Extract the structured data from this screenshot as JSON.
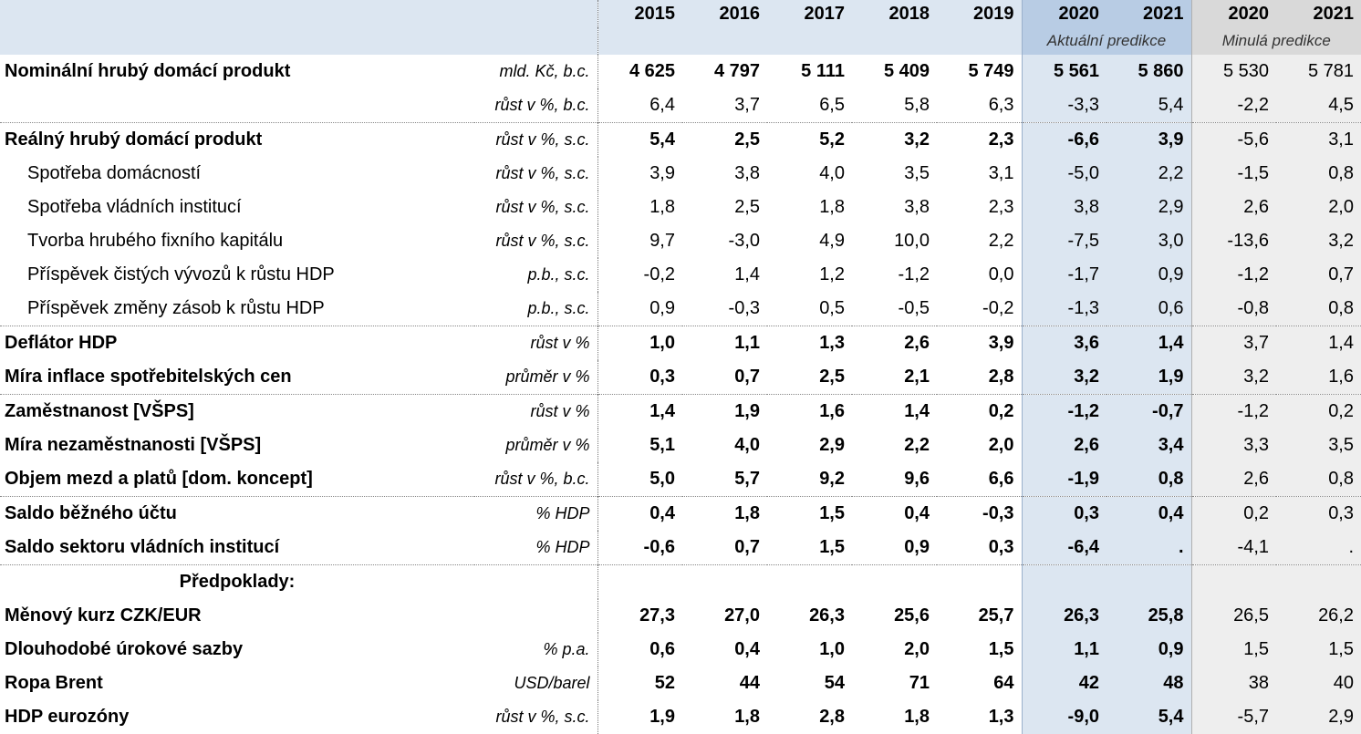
{
  "header": {
    "years_hist": [
      "2015",
      "2016",
      "2017",
      "2018",
      "2019"
    ],
    "years_current": [
      "2020",
      "2021"
    ],
    "years_previous": [
      "2020",
      "2021"
    ],
    "label_current": "Aktuální predikce",
    "label_previous": "Minulá predikce"
  },
  "rows": [
    {
      "name": "Nominální hrubý domácí produkt",
      "unit": "mld. Kč, b.c.",
      "values": [
        "4 625",
        "4 797",
        "5 111",
        "5 409",
        "5 749",
        "5 561",
        "5 860",
        "5 530",
        "5 781"
      ]
    },
    {
      "name": "",
      "unit": "růst v %, b.c.",
      "values": [
        "6,4",
        "3,7",
        "6,5",
        "5,8",
        "6,3",
        "-3,3",
        "5,4",
        "-2,2",
        "4,5"
      ]
    },
    {
      "name": "Reálný hrubý domácí produkt",
      "unit": "růst v %, s.c.",
      "values": [
        "5,4",
        "2,5",
        "5,2",
        "3,2",
        "2,3",
        "-6,6",
        "3,9",
        "-5,6",
        "3,1"
      ]
    },
    {
      "name": "Spotřeba domácností",
      "unit": "růst v %, s.c.",
      "values": [
        "3,9",
        "3,8",
        "4,0",
        "3,5",
        "3,1",
        "-5,0",
        "2,2",
        "-1,5",
        "0,8"
      ]
    },
    {
      "name": "Spotřeba vládních institucí",
      "unit": "růst v %, s.c.",
      "values": [
        "1,8",
        "2,5",
        "1,8",
        "3,8",
        "2,3",
        "3,8",
        "2,9",
        "2,6",
        "2,0"
      ]
    },
    {
      "name": "Tvorba hrubého fixního kapitálu",
      "unit": "růst v %, s.c.",
      "values": [
        "9,7",
        "-3,0",
        "4,9",
        "10,0",
        "2,2",
        "-7,5",
        "3,0",
        "-13,6",
        "3,2"
      ]
    },
    {
      "name": "Příspěvek čistých vývozů k růstu HDP",
      "unit": "p.b., s.c.",
      "values": [
        "-0,2",
        "1,4",
        "1,2",
        "-1,2",
        "0,0",
        "-1,7",
        "0,9",
        "-1,2",
        "0,7"
      ]
    },
    {
      "name": "Příspěvek změny zásob k růstu HDP",
      "unit": "p.b., s.c.",
      "values": [
        "0,9",
        "-0,3",
        "0,5",
        "-0,5",
        "-0,2",
        "-1,3",
        "0,6",
        "-0,8",
        "0,8"
      ]
    },
    {
      "name": "Deflátor HDP",
      "unit": "růst v %",
      "values": [
        "1,0",
        "1,1",
        "1,3",
        "2,6",
        "3,9",
        "3,6",
        "1,4",
        "3,7",
        "1,4"
      ]
    },
    {
      "name": "Míra inflace spotřebitelských cen",
      "unit": "průměr v %",
      "values": [
        "0,3",
        "0,7",
        "2,5",
        "2,1",
        "2,8",
        "3,2",
        "1,9",
        "3,2",
        "1,6"
      ]
    },
    {
      "name": "Zaměstnanost [VŠPS]",
      "unit": "růst v %",
      "values": [
        "1,4",
        "1,9",
        "1,6",
        "1,4",
        "0,2",
        "-1,2",
        "-0,7",
        "-1,2",
        "0,2"
      ]
    },
    {
      "name": "Míra nezaměstnanosti [VŠPS]",
      "unit": "průměr v %",
      "values": [
        "5,1",
        "4,0",
        "2,9",
        "2,2",
        "2,0",
        "2,6",
        "3,4",
        "3,3",
        "3,5"
      ]
    },
    {
      "name": "Objem mezd a platů [dom. koncept]",
      "unit": "růst v %, b.c.",
      "values": [
        "5,0",
        "5,7",
        "9,2",
        "9,6",
        "6,6",
        "-1,9",
        "0,8",
        "2,6",
        "0,8"
      ]
    },
    {
      "name": "Saldo běžného účtu",
      "unit": "% HDP",
      "values": [
        "0,4",
        "1,8",
        "1,5",
        "0,4",
        "-0,3",
        "0,3",
        "0,4",
        "0,2",
        "0,3"
      ]
    },
    {
      "name": "Saldo sektoru vládních institucí",
      "unit": "% HDP",
      "values": [
        "-0,6",
        "0,7",
        "1,5",
        "0,9",
        "0,3",
        "-6,4",
        ".",
        "-4,1",
        "."
      ]
    },
    {
      "name": "Předpoklady:",
      "unit": "",
      "values": [
        "",
        "",
        "",
        "",
        "",
        "",
        "",
        "",
        ""
      ]
    },
    {
      "name": "Měnový kurz CZK/EUR",
      "unit": "",
      "values": [
        "27,3",
        "27,0",
        "26,3",
        "25,6",
        "25,7",
        "26,3",
        "25,8",
        "26,5",
        "26,2"
      ]
    },
    {
      "name": "Dlouhodobé úrokové sazby",
      "unit": "% p.a.",
      "values": [
        "0,6",
        "0,4",
        "1,0",
        "2,0",
        "1,5",
        "1,1",
        "0,9",
        "1,5",
        "1,5"
      ]
    },
    {
      "name": "Ropa Brent",
      "unit": "USD/barel",
      "values": [
        "52",
        "44",
        "54",
        "71",
        "64",
        "42",
        "48",
        "38",
        "40"
      ]
    },
    {
      "name": "HDP eurozóny",
      "unit": "růst v %, s.c.",
      "values": [
        "1,9",
        "1,8",
        "2,8",
        "1,8",
        "1,3",
        "-9,0",
        "5,4",
        "-5,7",
        "2,9"
      ]
    }
  ]
}
